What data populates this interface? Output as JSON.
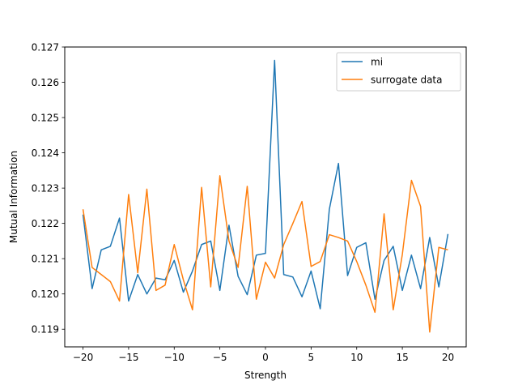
{
  "chart_data": {
    "type": "line",
    "title": "",
    "xlabel": "Strength",
    "ylabel": "Mutual Information",
    "xlim": [
      -22,
      22
    ],
    "ylim": [
      0.1185,
      0.127
    ],
    "xticks": [
      -20,
      -15,
      -10,
      -5,
      0,
      5,
      10,
      15,
      20
    ],
    "xtick_labels": [
      "−20",
      "−15",
      "−10",
      "−5",
      "0",
      "5",
      "10",
      "15",
      "20"
    ],
    "yticks": [
      0.119,
      0.12,
      0.121,
      0.122,
      0.123,
      0.124,
      0.125,
      0.126,
      0.127
    ],
    "ytick_labels": [
      "0.119",
      "0.120",
      "0.121",
      "0.122",
      "0.123",
      "0.124",
      "0.125",
      "0.126",
      "0.127"
    ],
    "grid": false,
    "legend": "top-right",
    "x": [
      -20,
      -19,
      -18,
      -17,
      -16,
      -15,
      -14,
      -13,
      -12,
      -11,
      -10,
      -9,
      -8,
      -7,
      -6,
      -5,
      -4,
      -3,
      -2,
      -1,
      0,
      1,
      2,
      3,
      4,
      5,
      6,
      7,
      8,
      9,
      10,
      11,
      12,
      13,
      14,
      15,
      16,
      17,
      18,
      19,
      20
    ],
    "series": [
      {
        "name": "mi",
        "color": "#1f77b4",
        "values": [
          0.12225,
          0.12015,
          0.12125,
          0.12135,
          0.12215,
          0.1198,
          0.12055,
          0.12,
          0.12045,
          0.1204,
          0.12095,
          0.12005,
          0.12065,
          0.1214,
          0.1215,
          0.1201,
          0.12195,
          0.1205,
          0.11998,
          0.1211,
          0.12115,
          0.12662,
          0.12055,
          0.12048,
          0.11992,
          0.12065,
          0.11958,
          0.1224,
          0.1237,
          0.12052,
          0.12132,
          0.12145,
          0.11985,
          0.12095,
          0.12135,
          0.1201,
          0.1211,
          0.12015,
          0.1216,
          0.1202,
          0.1217
        ]
      },
      {
        "name": "surrogate data",
        "color": "#ff7f0e",
        "values": [
          0.1224,
          0.12075,
          0.12055,
          0.12035,
          0.1198,
          0.12282,
          0.1206,
          0.12297,
          0.1201,
          0.12025,
          0.1214,
          0.1204,
          0.11955,
          0.12302,
          0.1202,
          0.12335,
          0.1215,
          0.12075,
          0.12305,
          0.11985,
          0.1209,
          0.12045,
          0.1214,
          0.122,
          0.12262,
          0.12078,
          0.12092,
          0.12168,
          0.1216,
          0.1215,
          0.12092,
          0.12025,
          0.11948,
          0.12227,
          0.11955,
          0.12112,
          0.12322,
          0.12248,
          0.11892,
          0.12132,
          0.12125
        ]
      }
    ]
  }
}
